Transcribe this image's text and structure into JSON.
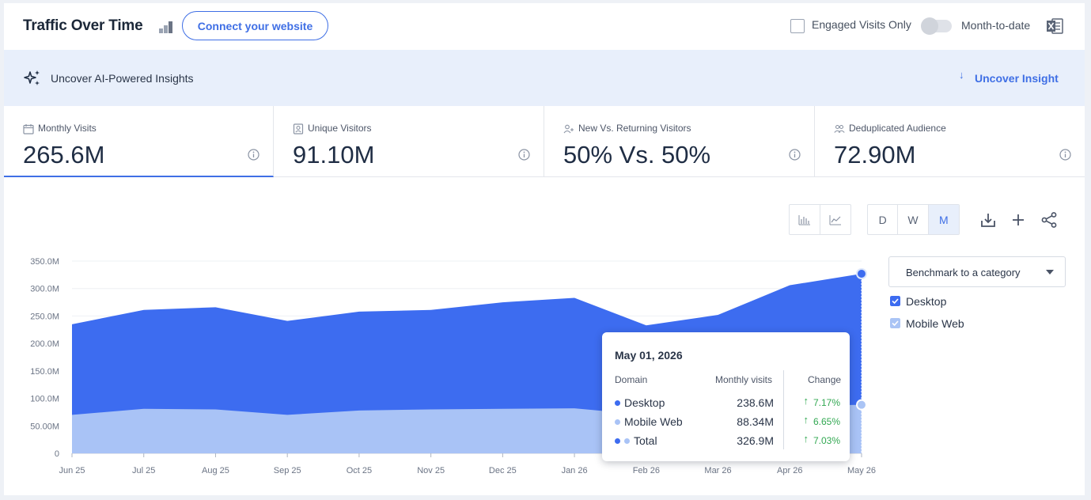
{
  "header": {
    "title": "Traffic Over Time",
    "connect_label": "Connect your website",
    "engaged_label": "Engaged Visits Only",
    "mtd_label": "Month-to-date",
    "icons": [
      "bar-rank-icon",
      "excel-icon"
    ]
  },
  "insights": {
    "label": "Uncover AI-Powered Insights",
    "link": "Uncover Insight"
  },
  "metrics": [
    {
      "label": "Monthly Visits",
      "value": "265.6M",
      "active": true
    },
    {
      "label": "Unique Visitors",
      "value": "91.10M",
      "active": false
    },
    {
      "label": "New Vs. Returning Visitors",
      "value": "50% Vs. 50%",
      "active": false
    },
    {
      "label": "Deduplicated Audience",
      "value": "72.90M",
      "active": false
    }
  ],
  "controls": {
    "granularity": [
      "D",
      "W",
      "M"
    ],
    "selected_granularity": "M",
    "chart_types": [
      "bar-chart-icon",
      "line-chart-icon"
    ],
    "tools": [
      "download-icon",
      "plus-icon",
      "share-icon"
    ]
  },
  "benchmark": {
    "label": "Benchmark to a category"
  },
  "legend": [
    {
      "label": "Desktop",
      "color": "#3d6cf0",
      "checked": true
    },
    {
      "label": "Mobile Web",
      "color": "#aac4f5",
      "checked": true
    }
  ],
  "tooltip": {
    "date": "May 01, 2026",
    "col_domain": "Domain",
    "col_visits": "Monthly visits",
    "col_change": "Change",
    "rows": [
      {
        "name": "Desktop",
        "value": "238.6M",
        "change": "7.17%"
      },
      {
        "name": "Mobile Web",
        "value": "88.34M",
        "change": "6.65%"
      },
      {
        "name": "Total",
        "value": "326.9M",
        "change": "7.03%"
      }
    ]
  },
  "colors": {
    "accent": "#3f6fe5",
    "desktop": "#3d6cf0",
    "mobile": "#a9c3f6",
    "positive": "#32a852"
  },
  "chart_data": {
    "type": "area",
    "stacked": true,
    "x": [
      "Jun 25",
      "Jul 25",
      "Aug 25",
      "Sep 25",
      "Oct 25",
      "Nov 25",
      "Dec 25",
      "Jan 26",
      "Feb 26",
      "Mar 26",
      "Apr 26",
      "May 26"
    ],
    "series": [
      {
        "name": "Desktop",
        "values": [
          165,
          180,
          186,
          171,
          180,
          181,
          194,
          201,
          163,
          170,
          220,
          238.6
        ]
      },
      {
        "name": "Mobile Web",
        "values": [
          70,
          81,
          80,
          70,
          78,
          80,
          81,
          82,
          70,
          82,
          86,
          88.34
        ]
      }
    ],
    "yticks": [
      "0",
      "50.00M",
      "100.0M",
      "150.0M",
      "200.0M",
      "250.0M",
      "300.0M",
      "350.0M"
    ],
    "ylim": [
      0,
      350
    ],
    "grid": true
  }
}
